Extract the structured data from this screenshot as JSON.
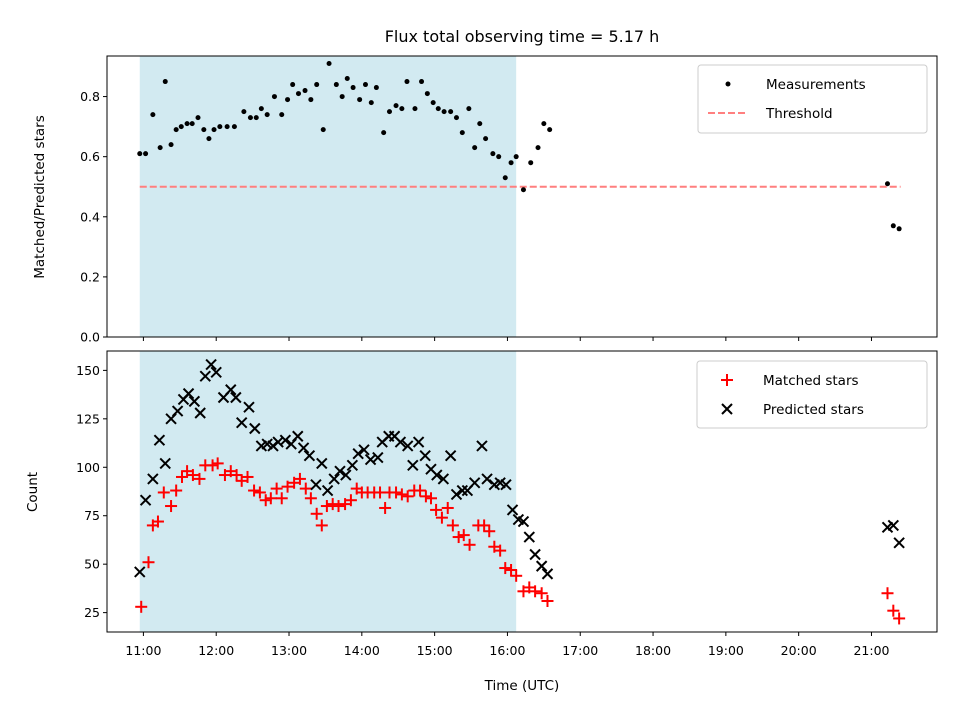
{
  "chart_data": {
    "type": "scatter",
    "title": "Flux total observing time = 5.17 h",
    "xlabel": "Time (UTC)",
    "x_unit": "hours UTC",
    "xlim": [
      10.5,
      21.9
    ],
    "xticks": [
      {
        "value": 11,
        "label": "11:00"
      },
      {
        "value": 12,
        "label": "12:00"
      },
      {
        "value": 13,
        "label": "13:00"
      },
      {
        "value": 14,
        "label": "14:00"
      },
      {
        "value": 15,
        "label": "15:00"
      },
      {
        "value": 16,
        "label": "16:00"
      },
      {
        "value": 17,
        "label": "17:00"
      },
      {
        "value": 18,
        "label": "18:00"
      },
      {
        "value": 19,
        "label": "19:00"
      },
      {
        "value": 20,
        "label": "20:00"
      },
      {
        "value": 21,
        "label": "21:00"
      }
    ],
    "shaded_span": {
      "x0": 10.95,
      "x1": 16.12,
      "color": "#add8e6"
    },
    "panels": [
      {
        "id": "ratio",
        "ylabel": "Matched/Predicted stars",
        "ylim": [
          0,
          0.935
        ],
        "yticks": [
          {
            "value": 0.0,
            "label": "0.0"
          },
          {
            "value": 0.2,
            "label": "0.2"
          },
          {
            "value": 0.4,
            "label": "0.4"
          },
          {
            "value": 0.6,
            "label": "0.6"
          },
          {
            "value": 0.8,
            "label": "0.8"
          }
        ],
        "legend": {
          "position": "top-right",
          "entries": [
            "Measurements",
            "Threshold"
          ]
        },
        "threshold": {
          "name": "Threshold",
          "value": 0.5,
          "color": "#ff7f7f",
          "x_range": [
            10.95,
            21.4
          ]
        },
        "series": [
          {
            "name": "Measurements",
            "marker": "dot",
            "color": "#000000",
            "points": [
              [
                10.95,
                0.61
              ],
              [
                11.03,
                0.61
              ],
              [
                11.13,
                0.74
              ],
              [
                11.23,
                0.63
              ],
              [
                11.3,
                0.85
              ],
              [
                11.38,
                0.64
              ],
              [
                11.45,
                0.69
              ],
              [
                11.52,
                0.7
              ],
              [
                11.6,
                0.71
              ],
              [
                11.67,
                0.71
              ],
              [
                11.75,
                0.73
              ],
              [
                11.83,
                0.69
              ],
              [
                11.9,
                0.66
              ],
              [
                11.97,
                0.69
              ],
              [
                12.05,
                0.7
              ],
              [
                12.15,
                0.7
              ],
              [
                12.25,
                0.7
              ],
              [
                12.38,
                0.75
              ],
              [
                12.47,
                0.73
              ],
              [
                12.55,
                0.73
              ],
              [
                12.62,
                0.76
              ],
              [
                12.7,
                0.74
              ],
              [
                12.8,
                0.8
              ],
              [
                12.9,
                0.74
              ],
              [
                12.98,
                0.79
              ],
              [
                13.05,
                0.84
              ],
              [
                13.13,
                0.81
              ],
              [
                13.22,
                0.82
              ],
              [
                13.3,
                0.79
              ],
              [
                13.38,
                0.84
              ],
              [
                13.47,
                0.69
              ],
              [
                13.55,
                0.91
              ],
              [
                13.65,
                0.84
              ],
              [
                13.73,
                0.8
              ],
              [
                13.8,
                0.86
              ],
              [
                13.88,
                0.83
              ],
              [
                13.97,
                0.79
              ],
              [
                14.05,
                0.84
              ],
              [
                14.13,
                0.78
              ],
              [
                14.2,
                0.83
              ],
              [
                14.3,
                0.68
              ],
              [
                14.38,
                0.75
              ],
              [
                14.47,
                0.77
              ],
              [
                14.55,
                0.76
              ],
              [
                14.62,
                0.85
              ],
              [
                14.73,
                0.76
              ],
              [
                14.82,
                0.85
              ],
              [
                14.9,
                0.81
              ],
              [
                14.98,
                0.78
              ],
              [
                15.05,
                0.76
              ],
              [
                15.13,
                0.75
              ],
              [
                15.22,
                0.75
              ],
              [
                15.3,
                0.73
              ],
              [
                15.38,
                0.68
              ],
              [
                15.47,
                0.76
              ],
              [
                15.55,
                0.63
              ],
              [
                15.62,
                0.71
              ],
              [
                15.7,
                0.66
              ],
              [
                15.8,
                0.61
              ],
              [
                15.88,
                0.6
              ],
              [
                15.97,
                0.53
              ],
              [
                16.05,
                0.58
              ],
              [
                16.12,
                0.6
              ],
              [
                16.22,
                0.49
              ],
              [
                16.32,
                0.58
              ],
              [
                16.42,
                0.63
              ],
              [
                16.5,
                0.71
              ],
              [
                16.58,
                0.69
              ],
              [
                21.22,
                0.51
              ],
              [
                21.3,
                0.37
              ],
              [
                21.38,
                0.36
              ]
            ]
          }
        ]
      },
      {
        "id": "counts",
        "ylabel": "Count",
        "ylim": [
          15,
          160
        ],
        "yticks": [
          {
            "value": 25,
            "label": "25"
          },
          {
            "value": 50,
            "label": "50"
          },
          {
            "value": 75,
            "label": "75"
          },
          {
            "value": 100,
            "label": "100"
          },
          {
            "value": 125,
            "label": "125"
          },
          {
            "value": 150,
            "label": "150"
          }
        ],
        "legend": {
          "position": "top-right",
          "entries": [
            "Matched stars",
            "Predicted stars"
          ]
        },
        "series": [
          {
            "name": "Matched stars",
            "marker": "plus",
            "color": "#ff0000",
            "points": [
              [
                10.97,
                28
              ],
              [
                11.07,
                51
              ],
              [
                11.13,
                70
              ],
              [
                11.2,
                72
              ],
              [
                11.28,
                87
              ],
              [
                11.38,
                80
              ],
              [
                11.45,
                88
              ],
              [
                11.53,
                95
              ],
              [
                11.6,
                98
              ],
              [
                11.68,
                96
              ],
              [
                11.77,
                94
              ],
              [
                11.85,
                101
              ],
              [
                11.95,
                101
              ],
              [
                12.02,
                102
              ],
              [
                12.12,
                96
              ],
              [
                12.2,
                98
              ],
              [
                12.28,
                96
              ],
              [
                12.35,
                93
              ],
              [
                12.43,
                95
              ],
              [
                12.52,
                88
              ],
              [
                12.6,
                87
              ],
              [
                12.68,
                83
              ],
              [
                12.75,
                84
              ],
              [
                12.83,
                89
              ],
              [
                12.9,
                84
              ],
              [
                12.98,
                90
              ],
              [
                13.07,
                92
              ],
              [
                13.15,
                94
              ],
              [
                13.23,
                89
              ],
              [
                13.3,
                84
              ],
              [
                13.38,
                76
              ],
              [
                13.45,
                70
              ],
              [
                13.52,
                80
              ],
              [
                13.6,
                81
              ],
              [
                13.68,
                80
              ],
              [
                13.77,
                81
              ],
              [
                13.85,
                83
              ],
              [
                13.93,
                89
              ],
              [
                14.0,
                87
              ],
              [
                14.08,
                87
              ],
              [
                14.17,
                87
              ],
              [
                14.25,
                87
              ],
              [
                14.32,
                79
              ],
              [
                14.38,
                87
              ],
              [
                14.47,
                87
              ],
              [
                14.55,
                86
              ],
              [
                14.63,
                85
              ],
              [
                14.72,
                88
              ],
              [
                14.8,
                88
              ],
              [
                14.88,
                85
              ],
              [
                14.95,
                84
              ],
              [
                15.02,
                78
              ],
              [
                15.1,
                74
              ],
              [
                15.18,
                79
              ],
              [
                15.25,
                70
              ],
              [
                15.33,
                64
              ],
              [
                15.4,
                65
              ],
              [
                15.48,
                60
              ],
              [
                15.6,
                70
              ],
              [
                15.68,
                70
              ],
              [
                15.75,
                67
              ],
              [
                15.82,
                59
              ],
              [
                15.9,
                57
              ],
              [
                15.97,
                48
              ],
              [
                16.05,
                47
              ],
              [
                16.12,
                44
              ],
              [
                16.22,
                36
              ],
              [
                16.3,
                38
              ],
              [
                16.38,
                36
              ],
              [
                16.47,
                35
              ],
              [
                16.55,
                31
              ],
              [
                21.22,
                35
              ],
              [
                21.3,
                26
              ],
              [
                21.38,
                22
              ]
            ]
          },
          {
            "name": "Predicted stars",
            "marker": "x",
            "color": "#000000",
            "points": [
              [
                10.95,
                46
              ],
              [
                11.03,
                83
              ],
              [
                11.13,
                94
              ],
              [
                11.22,
                114
              ],
              [
                11.3,
                102
              ],
              [
                11.38,
                125
              ],
              [
                11.47,
                129
              ],
              [
                11.55,
                135
              ],
              [
                11.62,
                138
              ],
              [
                11.7,
                134
              ],
              [
                11.78,
                128
              ],
              [
                11.85,
                147
              ],
              [
                11.93,
                153
              ],
              [
                12.0,
                149
              ],
              [
                12.1,
                136
              ],
              [
                12.2,
                140
              ],
              [
                12.27,
                136
              ],
              [
                12.35,
                123
              ],
              [
                12.45,
                131
              ],
              [
                12.53,
                120
              ],
              [
                12.62,
                111
              ],
              [
                12.7,
                112
              ],
              [
                12.78,
                111
              ],
              [
                12.85,
                113
              ],
              [
                12.95,
                114
              ],
              [
                13.03,
                112
              ],
              [
                13.12,
                116
              ],
              [
                13.2,
                110
              ],
              [
                13.28,
                106
              ],
              [
                13.37,
                91
              ],
              [
                13.45,
                102
              ],
              [
                13.53,
                88
              ],
              [
                13.62,
                94
              ],
              [
                13.7,
                98
              ],
              [
                13.78,
                96
              ],
              [
                13.87,
                101
              ],
              [
                13.95,
                107
              ],
              [
                14.03,
                109
              ],
              [
                14.12,
                104
              ],
              [
                14.22,
                105
              ],
              [
                14.28,
                113
              ],
              [
                14.37,
                116
              ],
              [
                14.45,
                116
              ],
              [
                14.53,
                113
              ],
              [
                14.63,
                111
              ],
              [
                14.7,
                101
              ],
              [
                14.78,
                113
              ],
              [
                14.87,
                106
              ],
              [
                14.95,
                99
              ],
              [
                15.03,
                96
              ],
              [
                15.12,
                94
              ],
              [
                15.22,
                106
              ],
              [
                15.3,
                86
              ],
              [
                15.38,
                88
              ],
              [
                15.45,
                88
              ],
              [
                15.55,
                92
              ],
              [
                15.65,
                111
              ],
              [
                15.72,
                94
              ],
              [
                15.82,
                91
              ],
              [
                15.9,
                92
              ],
              [
                15.98,
                91
              ],
              [
                16.07,
                78
              ],
              [
                16.15,
                73
              ],
              [
                16.22,
                72
              ],
              [
                16.3,
                64
              ],
              [
                16.38,
                55
              ],
              [
                16.47,
                49
              ],
              [
                16.55,
                45
              ],
              [
                21.22,
                69
              ],
              [
                21.3,
                70
              ],
              [
                21.38,
                61
              ]
            ]
          }
        ]
      }
    ]
  }
}
